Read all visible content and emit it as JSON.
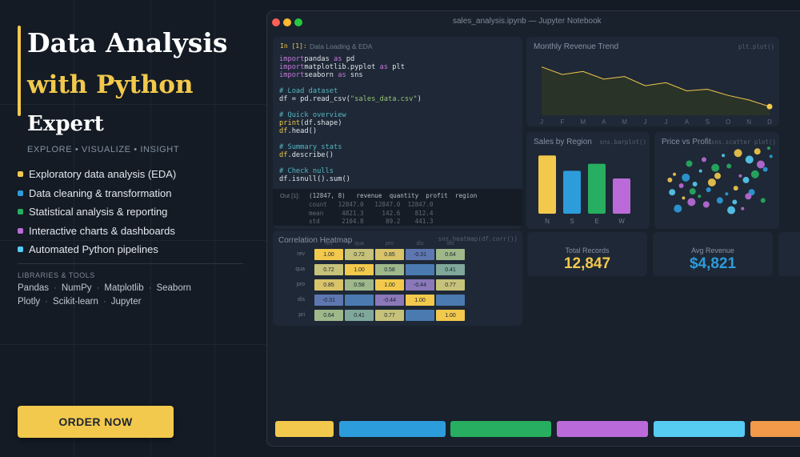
{
  "hero": {
    "title_line1": "Data Analysis",
    "title_line2": "with Python",
    "title_line3": "Expert",
    "tagline": "EXPLORE  •  VISUALIZE  •  INSIGHT"
  },
  "features": [
    {
      "label": "Exploratory data analysis (EDA)",
      "color": "#f2c94c"
    },
    {
      "label": "Data cleaning & transformation",
      "color": "#2d9cdb"
    },
    {
      "label": "Statistical analysis & reporting",
      "color": "#27ae60"
    },
    {
      "label": "Interactive charts & dashboards",
      "color": "#bb6bd9"
    },
    {
      "label": "Automated Python pipelines",
      "color": "#56ccf2"
    }
  ],
  "libraries": {
    "heading": "LIBRARIES & TOOLS",
    "row1": [
      "Pandas",
      "NumPy",
      "Matplotlib",
      "Seaborn"
    ],
    "row2": [
      "Plotly",
      "Scikit-learn",
      "Jupyter"
    ]
  },
  "cta": {
    "label": "ORDER NOW"
  },
  "window": {
    "title": "sales_analysis.ipynb  —  Jupyter Notebook"
  },
  "notebook": {
    "cell_label": "In [1]:",
    "cell_heading": "Data Loading & EDA",
    "code_lines": [
      [
        [
          "kw",
          "import"
        ],
        [
          "",
          "pandas "
        ],
        [
          "kw",
          "as"
        ],
        [
          "",
          " pd"
        ]
      ],
      [
        [
          "kw",
          "import"
        ],
        [
          "",
          "matplotlib.pyplot "
        ],
        [
          "kw",
          "as"
        ],
        [
          "",
          " plt"
        ]
      ],
      [
        [
          "kw",
          "import"
        ],
        [
          "",
          "seaborn "
        ],
        [
          "kw",
          "as"
        ],
        [
          "",
          " sns"
        ]
      ],
      [
        [
          "",
          ""
        ]
      ],
      [
        [
          "cm",
          "# Load dataset"
        ]
      ],
      [
        [
          "",
          "df = pd.read_csv("
        ],
        [
          "str",
          "\"sales_data.csv\""
        ],
        [
          "",
          ")"
        ]
      ],
      [
        [
          "",
          ""
        ]
      ],
      [
        [
          "cm",
          "# Quick overview"
        ]
      ],
      [
        [
          "fn",
          "print"
        ],
        [
          "",
          "(df.shape)"
        ]
      ],
      [
        [
          "fn",
          "df"
        ],
        [
          "",
          ".head()"
        ]
      ],
      [
        [
          "",
          ""
        ]
      ],
      [
        [
          "cm",
          "# Summary stats"
        ]
      ],
      [
        [
          "fn",
          "df"
        ],
        [
          "",
          ".describe()"
        ]
      ],
      [
        [
          "",
          ""
        ]
      ],
      [
        [
          "cm",
          "# Check nulls"
        ]
      ],
      [
        [
          "",
          "df.isnull().sum()"
        ]
      ]
    ],
    "out_label": "Out [1]:",
    "out_rows": [
      "(12847, 8)   revenue  quantity  profit  region",
      "count   12847.0   12847.0  12847.0",
      "mean     4821.3     142.6    812.4",
      "std      2104.8      89.2    441.3"
    ]
  },
  "revenue_card": {
    "title": "Monthly Revenue Trend",
    "code": "plt.plot()"
  },
  "region_card": {
    "title": "Sales by Region",
    "code": "sns.barplot()"
  },
  "scatter_card": {
    "title": "Price vs Profit",
    "code": "sns.scatter plot()"
  },
  "heatmap_card": {
    "title": "Correlation Heatmap",
    "code": "sns.heatmap(df.corr())",
    "col_labels": [
      "rev",
      "qua",
      "pro",
      "dis",
      "del"
    ],
    "row_labels": [
      "rev",
      "qua",
      "pro",
      "dis",
      "pri"
    ],
    "cells": [
      [
        "1.00",
        "0.72",
        "0.85",
        "-0.31",
        "0.64"
      ],
      [
        "0.72",
        "1.00",
        "0.58",
        "",
        "0.41"
      ],
      [
        "0.85",
        "0.58",
        "1.00",
        "-0.44",
        "0.77"
      ],
      [
        "-0.31",
        "",
        "-0.44",
        "1.00",
        ""
      ],
      [
        "0.64",
        "0.41",
        "0.77",
        "",
        "1.00"
      ]
    ]
  },
  "stats": [
    {
      "label": "Total Records",
      "value": "12,847",
      "color": "#f2c94c"
    },
    {
      "label": "Avg Revenue",
      "value": "$4,821",
      "color": "#2d9cdb"
    }
  ],
  "palette": [
    "#f2c94c",
    "#2d9cdb",
    "#27ae60",
    "#bb6bd9",
    "#56ccf2",
    "#f2994a"
  ],
  "chart_data": [
    {
      "type": "area",
      "title": "Monthly Revenue Trend",
      "categories": [
        "J",
        "F",
        "M",
        "A",
        "M",
        "J",
        "J",
        "A",
        "S",
        "O",
        "N",
        "D"
      ],
      "values": [
        95,
        80,
        86,
        71,
        76,
        58,
        64,
        48,
        51,
        39,
        30,
        17
      ],
      "ylim": [
        0,
        110
      ],
      "color": "#f2c94c"
    },
    {
      "type": "bar",
      "title": "Sales by Region",
      "categories": [
        "N",
        "S",
        "E",
        "W"
      ],
      "values": [
        91,
        67,
        78,
        55
      ],
      "colors": [
        "#f2c94c",
        "#2d9cdb",
        "#27ae60",
        "#bb6bd9"
      ],
      "ylim": [
        0,
        100
      ]
    },
    {
      "type": "scatter",
      "title": "Price vs Profit",
      "points": [
        [
          12,
          62
        ],
        [
          22,
          58
        ],
        [
          28,
          41
        ],
        [
          18,
          48
        ],
        [
          35,
          66
        ],
        [
          45,
          52
        ],
        [
          52,
          30
        ],
        [
          60,
          72
        ],
        [
          70,
          60
        ],
        [
          78,
          80
        ],
        [
          85,
          90
        ],
        [
          92,
          68
        ],
        [
          95,
          94
        ],
        [
          88,
          74
        ],
        [
          75,
          55
        ],
        [
          66,
          45
        ],
        [
          58,
          38
        ],
        [
          48,
          70
        ],
        [
          40,
          25
        ],
        [
          30,
          50
        ],
        [
          20,
          33
        ],
        [
          15,
          20
        ],
        [
          25,
          75
        ],
        [
          38,
          80
        ],
        [
          55,
          85
        ],
        [
          68,
          88
        ],
        [
          80,
          40
        ],
        [
          90,
          30
        ],
        [
          72,
          20
        ],
        [
          62,
          18
        ],
        [
          50,
          60
        ],
        [
          42,
          43
        ],
        [
          34,
          35
        ],
        [
          27,
          28
        ],
        [
          10,
          40
        ],
        [
          8,
          55
        ],
        [
          97,
          84
        ],
        [
          83,
          62
        ],
        [
          77,
          35
        ],
        [
          65,
          28
        ]
      ],
      "xlim": [
        0,
        100
      ],
      "ylim": [
        0,
        100
      ]
    }
  ]
}
